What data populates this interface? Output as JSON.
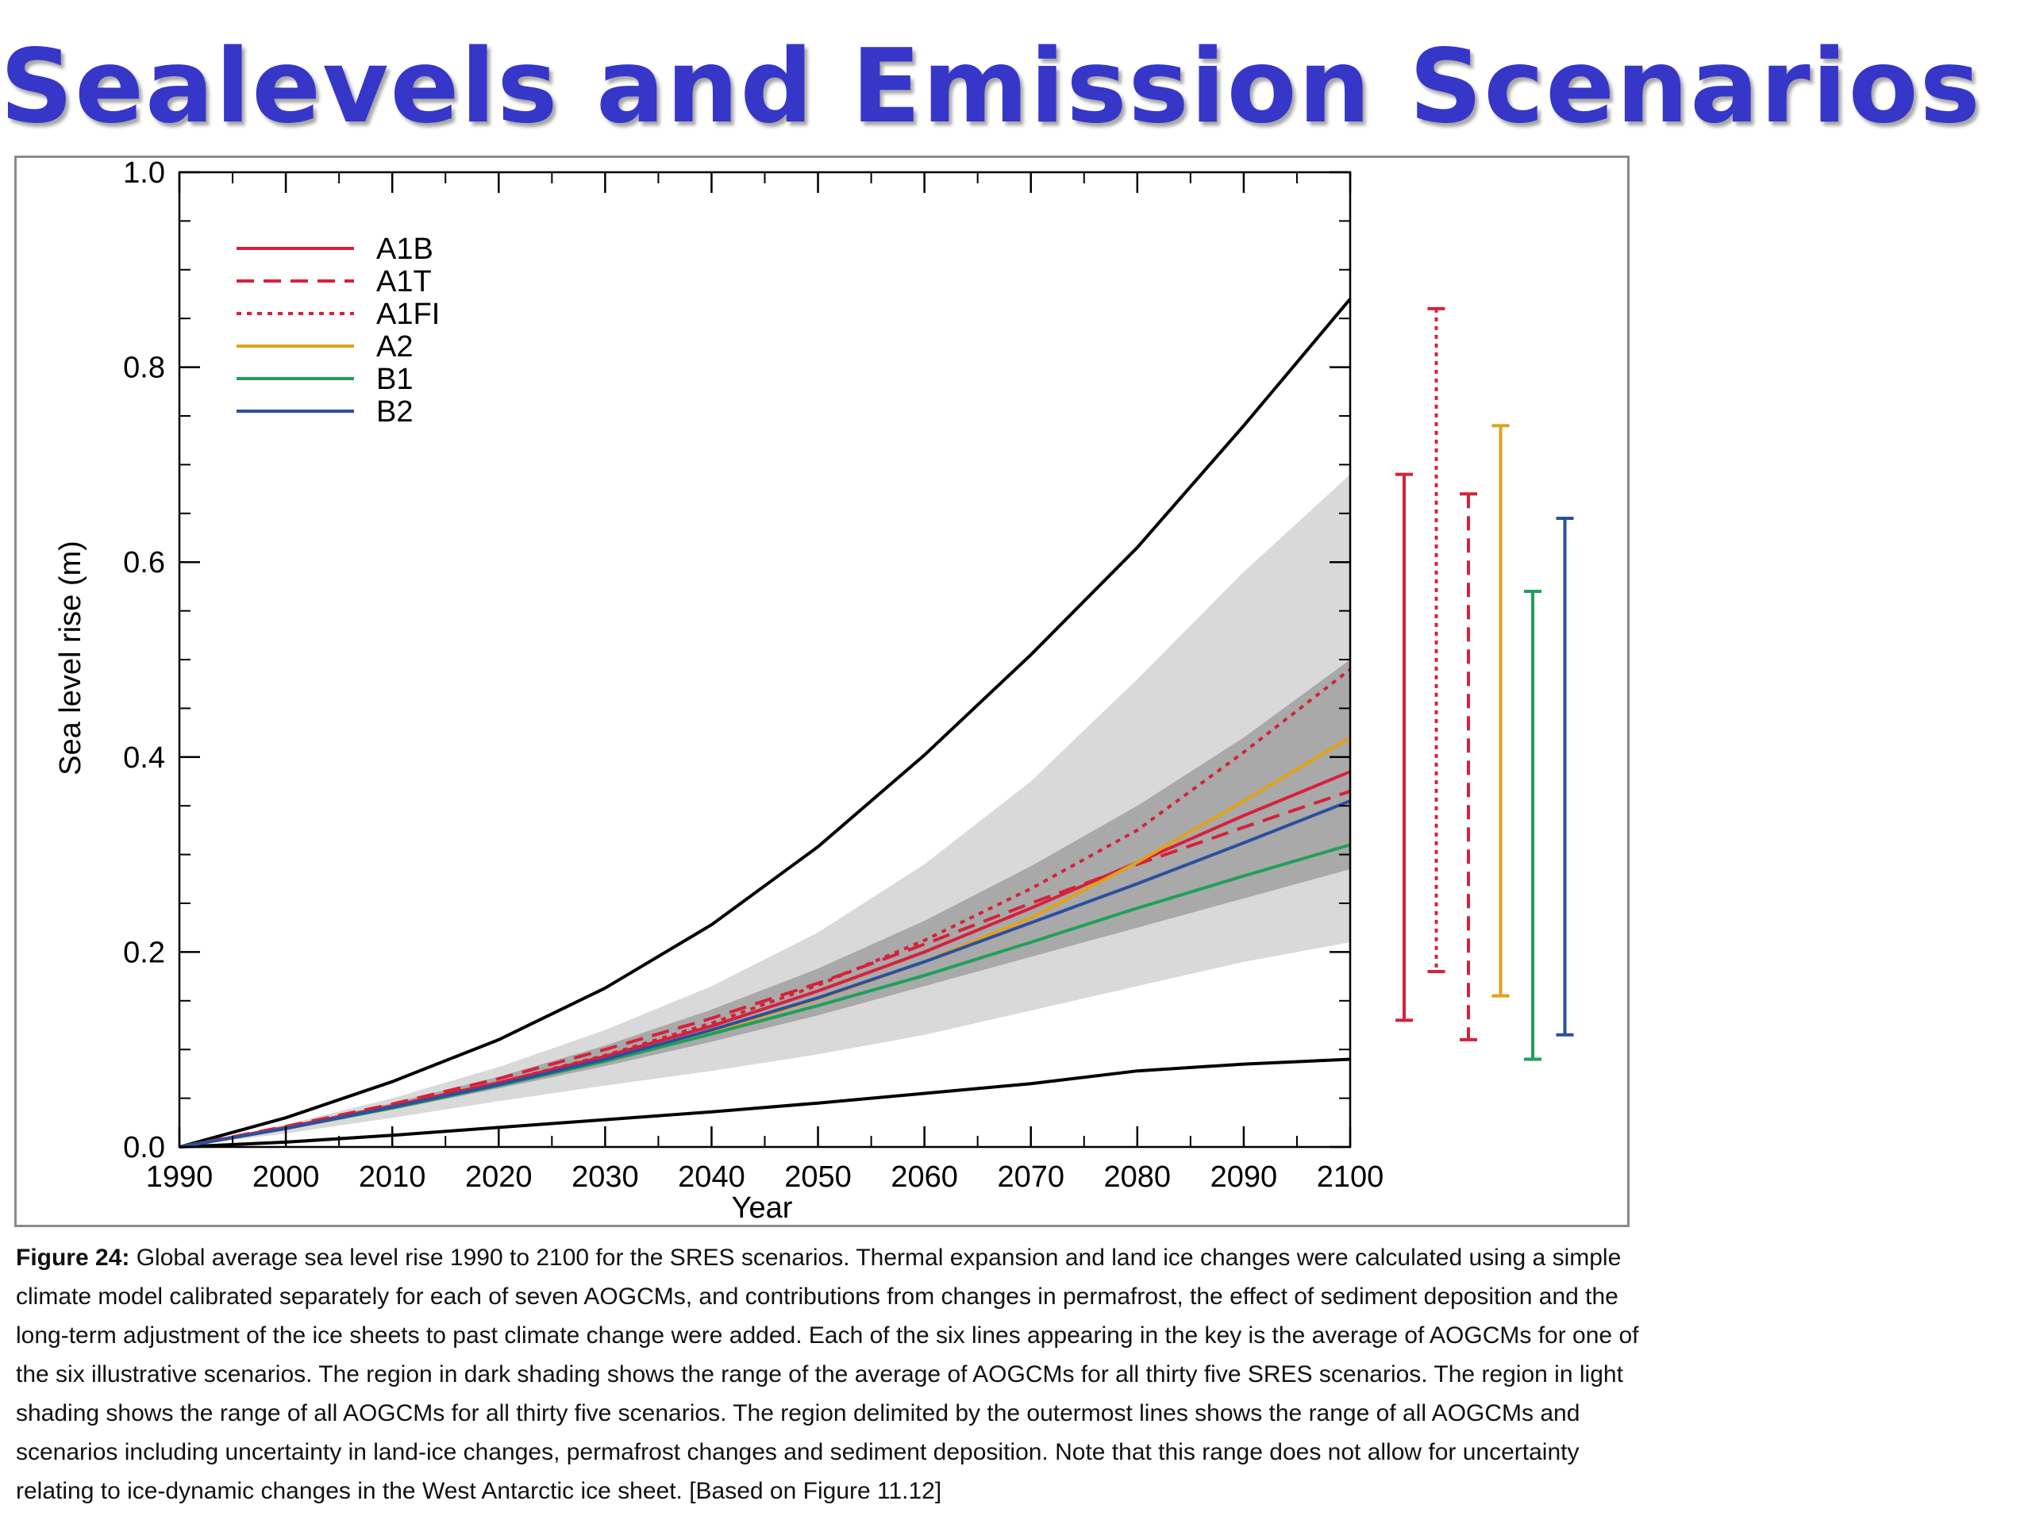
{
  "page": {
    "title": "Sealevels and Emission Scenarios"
  },
  "caption": {
    "label": "Figure 24:",
    "text": " Global average sea level rise 1990 to 2100 for the SRES scenarios. Thermal expansion and land ice changes were calculated using a simple climate model calibrated separately for each of seven AOGCMs, and contributions from changes in permafrost, the effect of sediment deposition and the long-term adjustment of the ice sheets to past climate change were added. Each of the six lines appearing in the key is the average of AOGCMs for one of the six illustrative scenarios. The region in dark shading shows the range of the average of AOGCMs for all thirty five SRES scenarios. The region in light shading shows the range of all AOGCMs for all thirty five scenarios. The region delimited by the outermost lines shows the range of all AOGCMs and scenarios including uncertainty in land-ice changes, permafrost changes and sediment deposition. Note that this range does not allow for uncertainty relating to ice-dynamic changes in the West Antarctic ice sheet. [Based on Figure 11.12]"
  },
  "chart_data": {
    "type": "line",
    "title": "",
    "xlabel": "Year",
    "ylabel": "Sea level rise (m)",
    "xlim": [
      1990,
      2100
    ],
    "ylim": [
      0.0,
      1.0
    ],
    "xticks": [
      1990,
      2000,
      2010,
      2020,
      2030,
      2040,
      2050,
      2060,
      2070,
      2080,
      2090,
      2100
    ],
    "yticks": [
      {
        "value": 0.0,
        "label": "0.0"
      },
      {
        "value": 0.2,
        "label": "0.2"
      },
      {
        "value": 0.4,
        "label": "0.4"
      },
      {
        "value": 0.6,
        "label": "0.6"
      },
      {
        "value": 0.8,
        "label": "0.8"
      },
      {
        "value": 1.0,
        "label": "1.0"
      }
    ],
    "legend_position": "top-left",
    "series": [
      {
        "name": "A1B",
        "color": "#d6213a",
        "dash": "solid",
        "x": [
          1990,
          2000,
          2010,
          2020,
          2030,
          2040,
          2050,
          2060,
          2070,
          2080,
          2090,
          2100
        ],
        "y": [
          0.0,
          0.02,
          0.042,
          0.066,
          0.093,
          0.124,
          0.16,
          0.2,
          0.245,
          0.292,
          0.34,
          0.385
        ]
      },
      {
        "name": "A1T",
        "color": "#d6213a",
        "dash": "dashed",
        "x": [
          1990,
          2000,
          2010,
          2020,
          2030,
          2040,
          2050,
          2060,
          2070,
          2080,
          2090,
          2100
        ],
        "y": [
          0.0,
          0.021,
          0.044,
          0.07,
          0.1,
          0.132,
          0.168,
          0.208,
          0.25,
          0.29,
          0.328,
          0.365
        ]
      },
      {
        "name": "A1FI",
        "color": "#d6213a",
        "dash": "dotted",
        "x": [
          1990,
          2000,
          2010,
          2020,
          2030,
          2040,
          2050,
          2060,
          2070,
          2080,
          2090,
          2100
        ],
        "y": [
          0.0,
          0.02,
          0.042,
          0.066,
          0.094,
          0.127,
          0.166,
          0.212,
          0.265,
          0.325,
          0.405,
          0.49
        ]
      },
      {
        "name": "A2",
        "color": "#e0a21a",
        "dash": "solid",
        "x": [
          1990,
          2000,
          2010,
          2020,
          2030,
          2040,
          2050,
          2060,
          2070,
          2080,
          2090,
          2100
        ],
        "y": [
          0.0,
          0.019,
          0.04,
          0.063,
          0.089,
          0.118,
          0.152,
          0.19,
          0.235,
          0.292,
          0.355,
          0.42
        ]
      },
      {
        "name": "B1",
        "color": "#1fa05a",
        "dash": "solid",
        "x": [
          1990,
          2000,
          2010,
          2020,
          2030,
          2040,
          2050,
          2060,
          2070,
          2080,
          2090,
          2100
        ],
        "y": [
          0.0,
          0.019,
          0.04,
          0.063,
          0.088,
          0.116,
          0.145,
          0.176,
          0.21,
          0.245,
          0.278,
          0.31
        ]
      },
      {
        "name": "B2",
        "color": "#2b4fa0",
        "dash": "solid",
        "x": [
          1990,
          2000,
          2010,
          2020,
          2030,
          2040,
          2050,
          2060,
          2070,
          2080,
          2090,
          2100
        ],
        "y": [
          0.0,
          0.019,
          0.041,
          0.064,
          0.09,
          0.12,
          0.153,
          0.19,
          0.23,
          0.27,
          0.312,
          0.355
        ]
      }
    ],
    "outer_bounds": {
      "color": "#000000",
      "x": [
        1990,
        2000,
        2010,
        2020,
        2030,
        2040,
        2050,
        2060,
        2070,
        2080,
        2090,
        2100
      ],
      "upper": [
        0.0,
        0.03,
        0.067,
        0.11,
        0.163,
        0.228,
        0.308,
        0.402,
        0.505,
        0.615,
        0.74,
        0.87
      ],
      "lower": [
        0.0,
        0.005,
        0.012,
        0.02,
        0.028,
        0.036,
        0.045,
        0.055,
        0.065,
        0.078,
        0.085,
        0.09
      ]
    },
    "light_shading": {
      "color": "#d9d9d9",
      "x": [
        1990,
        2000,
        2010,
        2020,
        2030,
        2040,
        2050,
        2060,
        2070,
        2080,
        2090,
        2100
      ],
      "upper": [
        0.0,
        0.023,
        0.05,
        0.082,
        0.12,
        0.165,
        0.22,
        0.29,
        0.375,
        0.48,
        0.59,
        0.69
      ],
      "lower": [
        0.0,
        0.014,
        0.03,
        0.047,
        0.063,
        0.078,
        0.095,
        0.115,
        0.14,
        0.165,
        0.19,
        0.21
      ]
    },
    "dark_shading": {
      "color": "#a9a9a9",
      "x": [
        1990,
        2000,
        2010,
        2020,
        2030,
        2040,
        2050,
        2060,
        2070,
        2080,
        2090,
        2100
      ],
      "upper": [
        0.0,
        0.021,
        0.045,
        0.072,
        0.104,
        0.141,
        0.183,
        0.232,
        0.288,
        0.35,
        0.42,
        0.5
      ],
      "lower": [
        0.0,
        0.018,
        0.038,
        0.06,
        0.083,
        0.108,
        0.135,
        0.165,
        0.195,
        0.225,
        0.255,
        0.285
      ]
    },
    "range_bars": [
      {
        "name": "A1B",
        "color": "#d6213a",
        "dash": "solid",
        "low": 0.13,
        "high": 0.69
      },
      {
        "name": "A1FI",
        "color": "#d6213a",
        "dash": "dotted",
        "low": 0.18,
        "high": 0.86
      },
      {
        "name": "A1T",
        "color": "#d6213a",
        "dash": "dashed",
        "low": 0.11,
        "high": 0.67
      },
      {
        "name": "A2",
        "color": "#e0a21a",
        "dash": "solid",
        "low": 0.155,
        "high": 0.74
      },
      {
        "name": "B1",
        "color": "#1fa05a",
        "dash": "solid",
        "low": 0.09,
        "high": 0.57
      },
      {
        "name": "B2",
        "color": "#2b4fa0",
        "dash": "solid",
        "low": 0.115,
        "high": 0.645
      }
    ]
  }
}
